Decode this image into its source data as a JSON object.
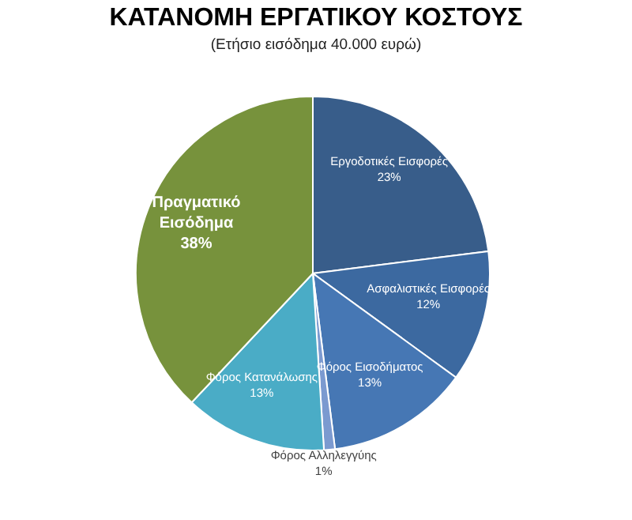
{
  "chart_data": {
    "type": "pie",
    "title": "ΚΑΤΑΝΟΜΗ ΕΡΓΑΤΙΚΟΥ ΚΟΣΤΟΥΣ",
    "subtitle": "(Ετήσιο εισόδημα 40.000 ευρώ)",
    "categories": [
      "Εργοδοτικές Εισφορές",
      "Ασφαλιστικές Εισφορές",
      "Φόρος Εισοδήματος",
      "Φόρος Αλληλεγγύης",
      "Φόρος Κατανάλωσης",
      "Πραγματικό Εισόδημα"
    ],
    "values": [
      23,
      12,
      13,
      1,
      13,
      38
    ],
    "value_labels": [
      "23%",
      "12%",
      "13%",
      "1%",
      "13%",
      "38%"
    ],
    "colors": [
      "#385d8a",
      "#3c69a0",
      "#4677b4",
      "#7b9ad0",
      "#4aacc6",
      "#77923c"
    ]
  }
}
